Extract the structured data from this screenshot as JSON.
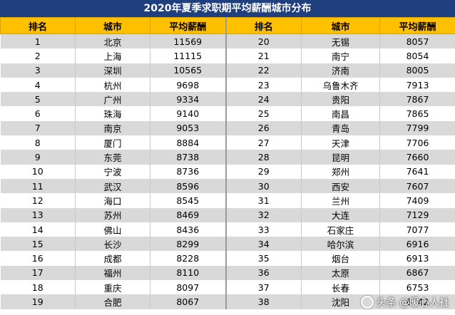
{
  "title": "2020年夏季求职期平均薪酬城市分布",
  "headers": [
    "排名",
    "城市",
    "平均薪酬",
    "排名",
    "城市",
    "平均薪酬"
  ],
  "rows": [
    [
      "1",
      "北京",
      "11569",
      "20",
      "无锡",
      "8057"
    ],
    [
      "2",
      "上海",
      "11115",
      "21",
      "南宁",
      "8054"
    ],
    [
      "3",
      "深圳",
      "10565",
      "22",
      "济南",
      "8005"
    ],
    [
      "4",
      "杭州",
      "9698",
      "23",
      "乌鲁木齐",
      "7913"
    ],
    [
      "5",
      "广州",
      "9334",
      "24",
      "贵阳",
      "7867"
    ],
    [
      "6",
      "珠海",
      "9140",
      "25",
      "南昌",
      "7865"
    ],
    [
      "7",
      "南京",
      "9053",
      "26",
      "青岛",
      "7799"
    ],
    [
      "8",
      "厦门",
      "8884",
      "27",
      "天津",
      "7706"
    ],
    [
      "9",
      "东莞",
      "8738",
      "28",
      "昆明",
      "7660"
    ],
    [
      "10",
      "宁波",
      "8736",
      "29",
      "郑州",
      "7641"
    ],
    [
      "11",
      "武汉",
      "8596",
      "30",
      "西安",
      "7607"
    ],
    [
      "12",
      "海口",
      "8545",
      "31",
      "兰州",
      "7409"
    ],
    [
      "13",
      "苏州",
      "8469",
      "32",
      "大连",
      "7129"
    ],
    [
      "14",
      "佛山",
      "8436",
      "33",
      "石家庄",
      "7077"
    ],
    [
      "15",
      "长沙",
      "8299",
      "34",
      "哈尔滨",
      "6916"
    ],
    [
      "16",
      "成都",
      "8228",
      "35",
      "烟台",
      "6913"
    ],
    [
      "17",
      "福州",
      "8110",
      "36",
      "太原",
      "6867"
    ],
    [
      "18",
      "重庆",
      "8097",
      "37",
      "长春",
      "6753"
    ],
    [
      "19",
      "合肥",
      "8067",
      "38",
      "沈阳",
      "6742"
    ]
  ],
  "watermark": "头条 @暖心人社",
  "colors": {
    "title_bg": "#1f3f7f",
    "header_bg": "#ffc000",
    "stripe": "#d9d9d9"
  }
}
